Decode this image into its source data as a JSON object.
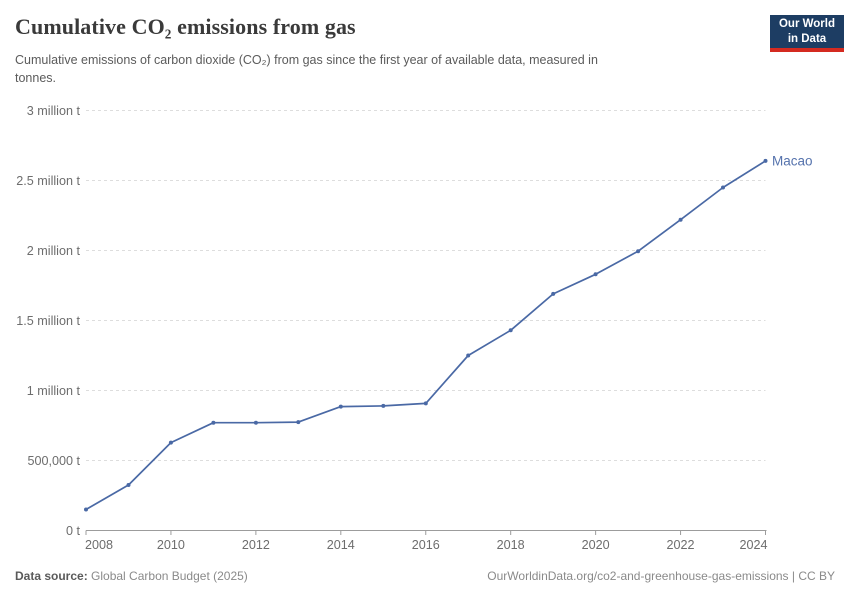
{
  "header": {
    "title": "Cumulative CO₂ emissions from gas",
    "subtitle": "Cumulative emissions of carbon dioxide (CO₂) from gas since the first year of available data, measured in\ntonnes.",
    "logo": {
      "line1": "Our World",
      "line2": "in Data"
    }
  },
  "theme": {
    "logo_bg": "#1d3d63",
    "logo_accent": "#d42a20",
    "line_color": "#4a69a5",
    "entity_label_color": "#5673ad",
    "grid_color": "#dddddd",
    "axis_color": "#9c9c9c",
    "axis_text_color": "#6d6d6d"
  },
  "footer": {
    "source_label": "Data source:",
    "source_value": " Global Carbon Budget (2025)",
    "link": "OurWorldinData.org/co2-and-greenhouse-gas-emissions | CC BY"
  },
  "chart_data": {
    "type": "line",
    "title": "Cumulative CO₂ emissions from gas",
    "xlabel": "",
    "ylabel": "",
    "xlim": [
      2008,
      2024
    ],
    "ylim": [
      0,
      3000000
    ],
    "grid": "horizontal-dashed",
    "legend_position": "end-of-line-label",
    "x_ticks": [
      2008,
      2010,
      2012,
      2014,
      2016,
      2018,
      2020,
      2022,
      2024
    ],
    "y_ticks": [
      {
        "value": 0,
        "label": "0 t"
      },
      {
        "value": 500000,
        "label": "500,000 t"
      },
      {
        "value": 1000000,
        "label": "1 million t"
      },
      {
        "value": 1500000,
        "label": "1.5 million t"
      },
      {
        "value": 2000000,
        "label": "2 million t"
      },
      {
        "value": 2500000,
        "label": "2.5 million t"
      },
      {
        "value": 3000000,
        "label": "3 million t"
      }
    ],
    "series": [
      {
        "name": "Macao",
        "color": "#4a69a5",
        "x": [
          2008,
          2009,
          2010,
          2011,
          2012,
          2013,
          2014,
          2015,
          2016,
          2017,
          2018,
          2019,
          2020,
          2021,
          2022,
          2023,
          2024
        ],
        "values": [
          150000,
          325000,
          628000,
          770000,
          770000,
          774000,
          885000,
          890000,
          908000,
          1250000,
          1430000,
          1690000,
          1830000,
          1995000,
          2220000,
          2450000,
          2640000
        ]
      }
    ]
  }
}
